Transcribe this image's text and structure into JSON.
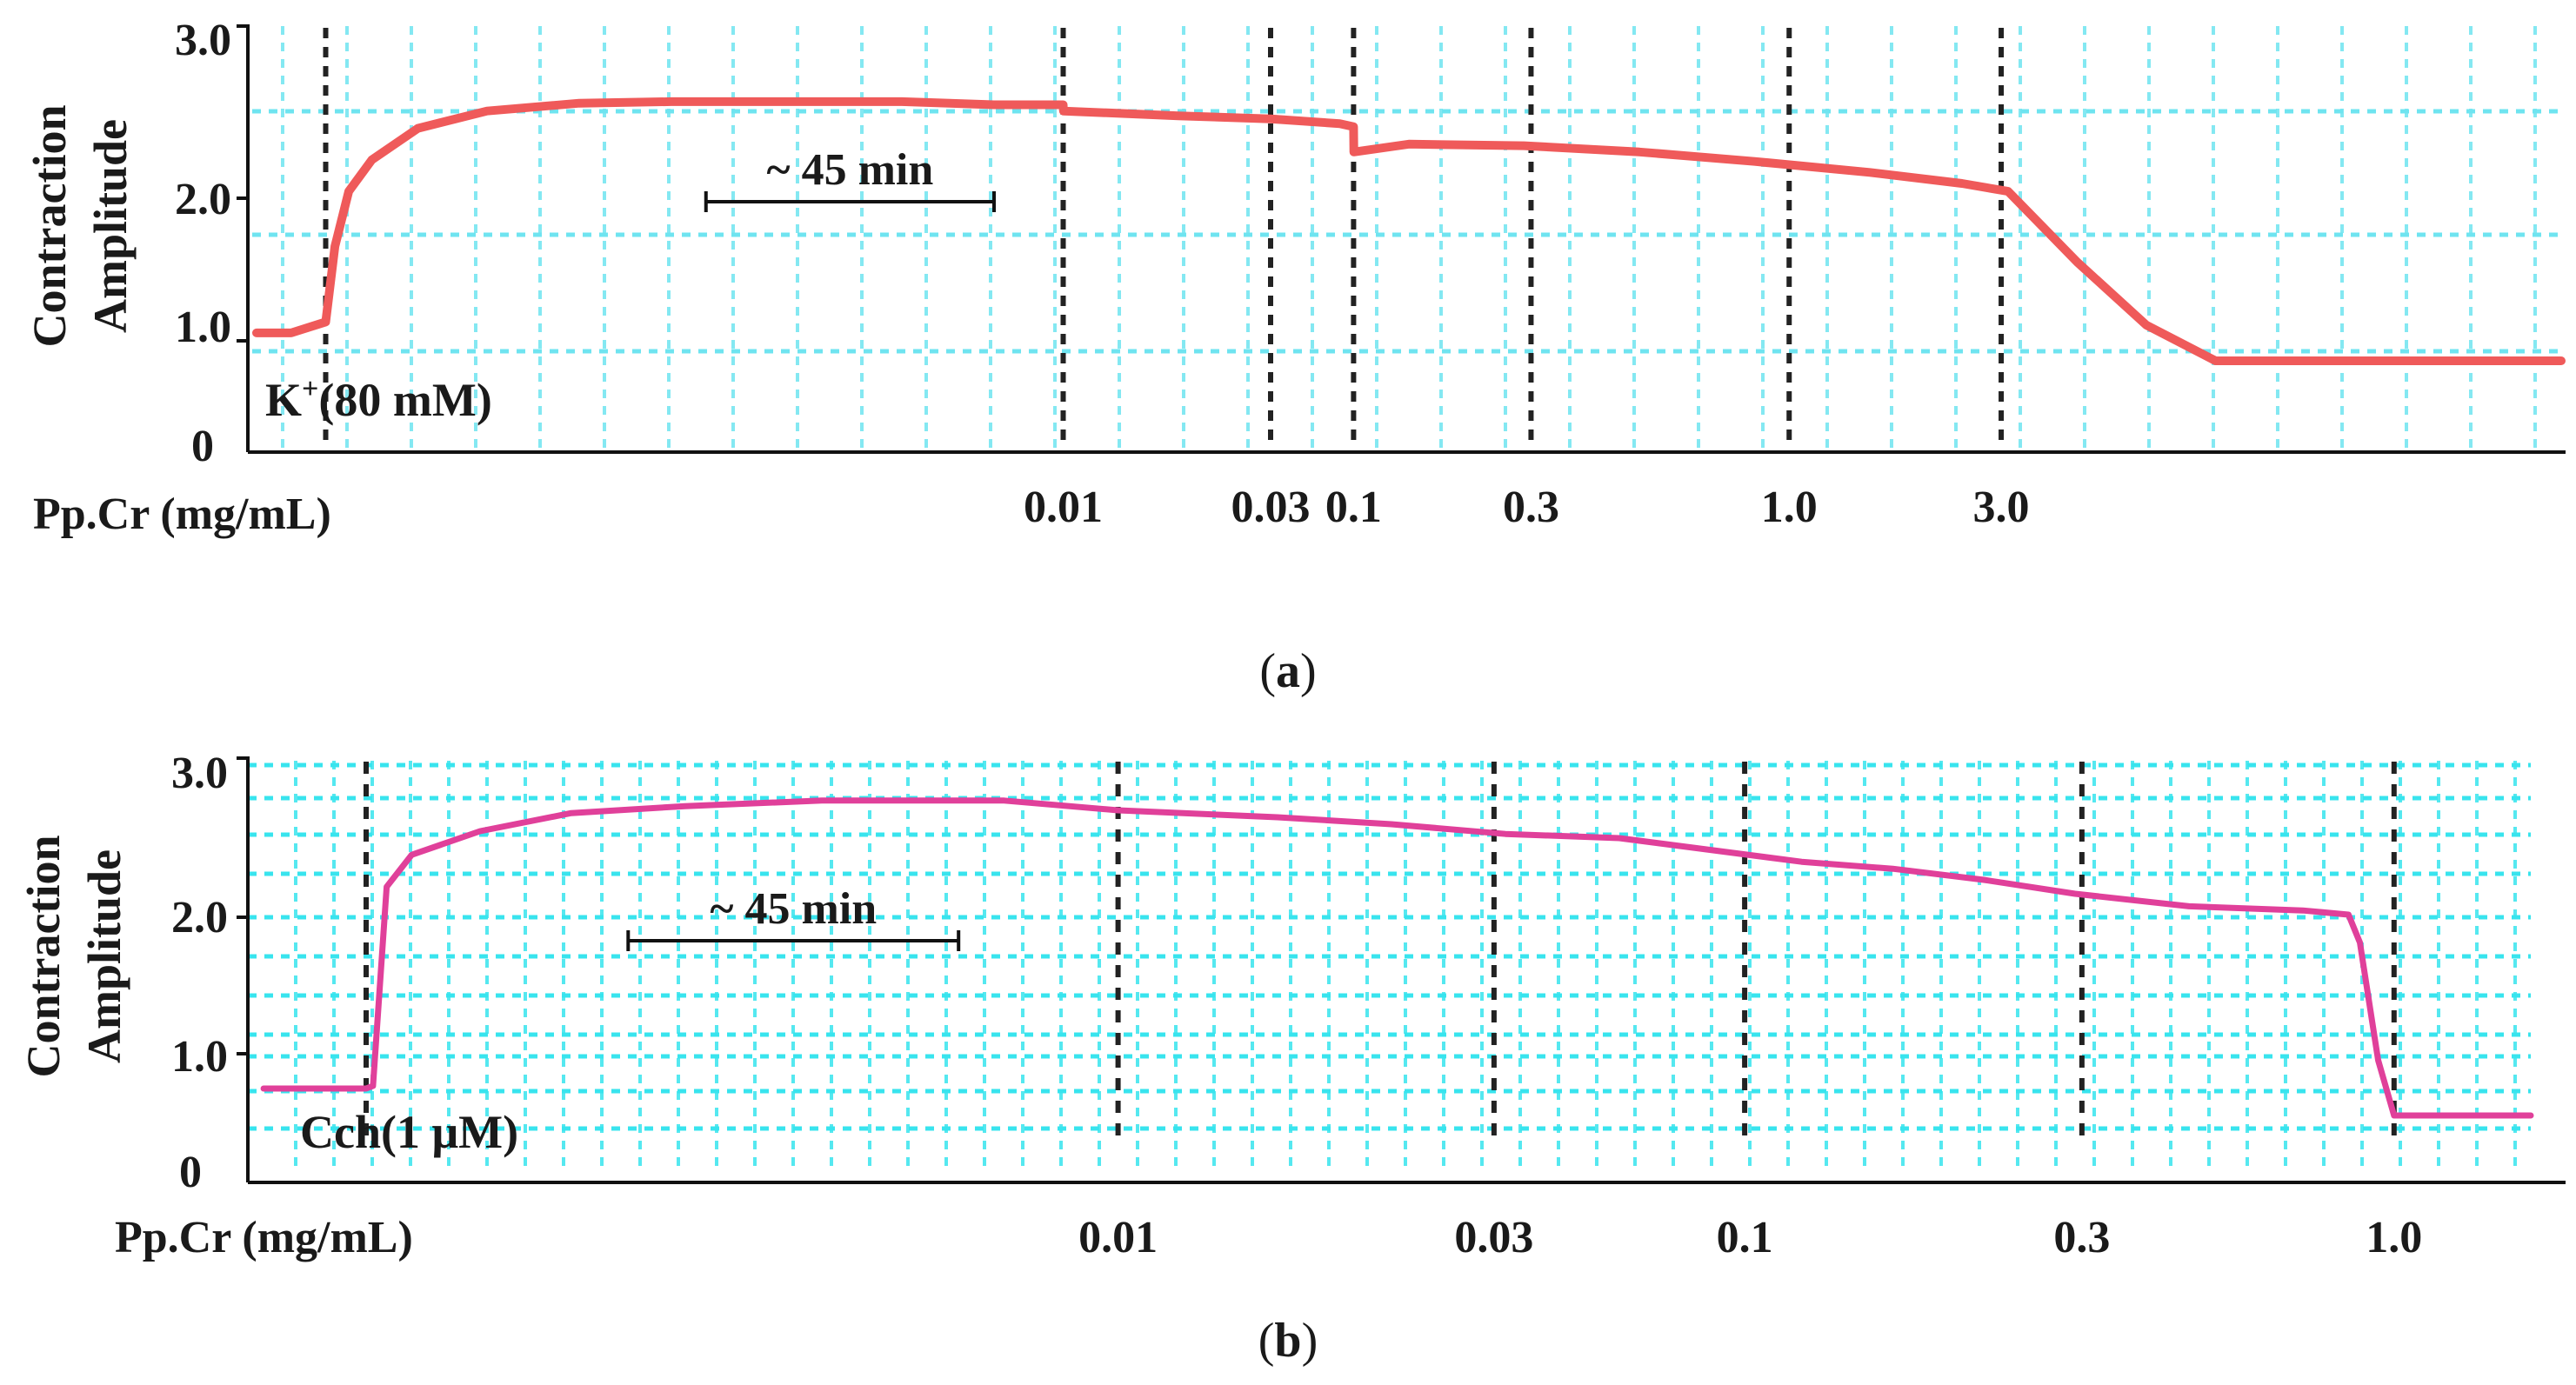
{
  "chart_data": [
    {
      "type": "line",
      "panel_label": "(a)",
      "label_prefix": "(",
      "label_letter": "a",
      "label_suffix": ")",
      "ylabel_line1": "Contraction",
      "ylabel_line2": "Amplitude",
      "xlabel": "Pp.Cr (mg/mL)",
      "y_ticks": [
        "3.0",
        "2.0",
        "1.0",
        "0"
      ],
      "ylim": [
        0,
        3.0
      ],
      "stimulus_ion": "K",
      "stimulus_sup": "+",
      "stimulus_rest": "(80 mM)",
      "scale_bar": "~ 45 min",
      "color": "#ef5a5a",
      "grid_color": "#6fe4f0",
      "series": [
        {
          "name": "tracing",
          "x": [
            0,
            1.5,
            3,
            3.4,
            4,
            5,
            7,
            10,
            14,
            18,
            20,
            24,
            28,
            32,
            35,
            35.01,
            40,
            44,
            47,
            47.6,
            47.61,
            50,
            55,
            60,
            65,
            70,
            74,
            76,
            79,
            82,
            85,
            100
          ],
          "y": [
            1.05,
            1.05,
            1.12,
            1.6,
            1.95,
            2.15,
            2.35,
            2.46,
            2.51,
            2.52,
            2.52,
            2.52,
            2.52,
            2.5,
            2.5,
            2.46,
            2.43,
            2.41,
            2.38,
            2.36,
            2.2,
            2.25,
            2.24,
            2.2,
            2.14,
            2.07,
            2.0,
            1.95,
            1.5,
            1.1,
            0.82,
            0.82
          ]
        }
      ],
      "additions": [
        {
          "x": 3,
          "label": ""
        },
        {
          "x": 35,
          "label": "0.01"
        },
        {
          "x": 44,
          "label": "0.03"
        },
        {
          "x": 47.6,
          "label": "0.1"
        },
        {
          "x": 55.3,
          "label": "0.3"
        },
        {
          "x": 66.5,
          "label": "1.0"
        },
        {
          "x": 75.7,
          "label": "3.0"
        }
      ],
      "scale_bar_x": [
        19.5,
        32
      ]
    },
    {
      "type": "line",
      "panel_label": "(b)",
      "label_prefix": "(",
      "label_letter": "b",
      "label_suffix": ")",
      "ylabel_line1": "Contraction",
      "ylabel_line2": "Amplitude",
      "xlabel": "Pp.Cr (mg/mL)",
      "y_ticks": [
        "3.0",
        "2.0",
        "1.0",
        "0"
      ],
      "ylim": [
        0,
        3.0
      ],
      "stimulus_ion": "Cch",
      "stimulus_sup": "",
      "stimulus_rest": "(1 μM)",
      "scale_bar": "~ 45 min",
      "color": "#e0409a",
      "grid_color": "#38e4ee",
      "series": [
        {
          "name": "tracing",
          "x": [
            0.5,
            5,
            5.3,
            5.9,
            7,
            10,
            14,
            19,
            25,
            30,
            33,
            38,
            45,
            50,
            55,
            60,
            68,
            72,
            76,
            80,
            85,
            90,
            92,
            92.5,
            93.3,
            94,
            100
          ],
          "y": [
            0.73,
            0.73,
            0.75,
            2.2,
            2.43,
            2.6,
            2.73,
            2.78,
            2.82,
            2.82,
            2.82,
            2.75,
            2.7,
            2.65,
            2.58,
            2.55,
            2.38,
            2.33,
            2.25,
            2.15,
            2.06,
            2.03,
            2.0,
            1.8,
            0.95,
            0.52,
            0.52
          ]
        }
      ],
      "additions": [
        {
          "x": 5,
          "label": ""
        },
        {
          "x": 38,
          "label": "0.01"
        },
        {
          "x": 54.5,
          "label": "0.03"
        },
        {
          "x": 65.5,
          "label": "0.1"
        },
        {
          "x": 80.3,
          "label": "0.3"
        },
        {
          "x": 94,
          "label": "1.0"
        }
      ],
      "scale_bar_x": [
        16.5,
        31
      ]
    }
  ]
}
